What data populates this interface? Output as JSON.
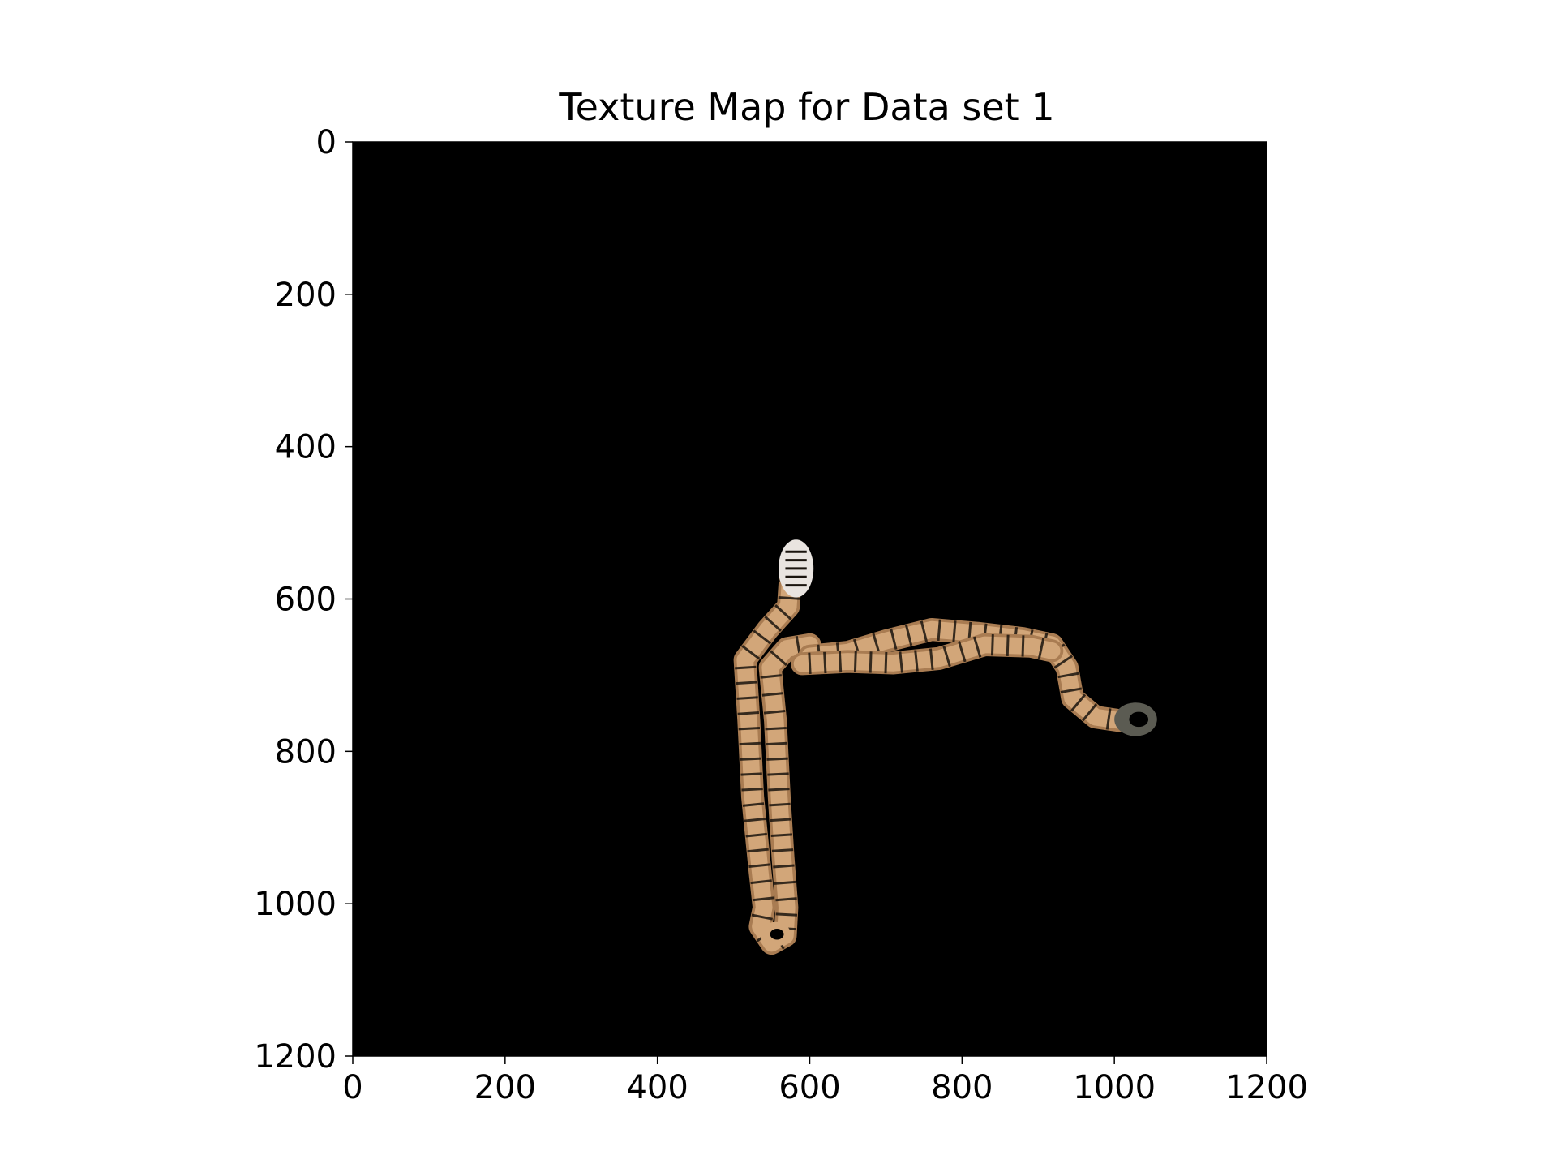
{
  "chart_data": {
    "type": "image",
    "title": "Texture Map for Data set 1",
    "xlabel": "",
    "ylabel": "",
    "xlim": [
      0,
      1200
    ],
    "ylim": [
      1200,
      0
    ],
    "x_ticks": [
      0,
      200,
      400,
      600,
      800,
      1000,
      1200
    ],
    "y_ticks": [
      0,
      200,
      400,
      600,
      800,
      1000,
      1200
    ],
    "x_tick_labels": [
      "0",
      "200",
      "400",
      "600",
      "800",
      "1000",
      "1200"
    ],
    "y_tick_labels": [
      "0",
      "200",
      "400",
      "600",
      "800",
      "1000",
      "1200"
    ],
    "grid": false,
    "background_color": "#000000",
    "texture_colors": {
      "tube": "#d2a679",
      "tube_dark": "#a97c52",
      "stripe": "#1a140e",
      "head": "#e9e4e0",
      "tail": "#5b5b52"
    },
    "paths": [
      {
        "name": "left-tube",
        "points": [
          [
            575,
            565
          ],
          [
            572,
            610
          ],
          [
            545,
            640
          ],
          [
            515,
            680
          ],
          [
            520,
            760
          ],
          [
            525,
            860
          ],
          [
            535,
            960
          ],
          [
            540,
            1005
          ],
          [
            535,
            1030
          ],
          [
            550,
            1052
          ],
          [
            568,
            1042
          ],
          [
            570,
            1005
          ],
          [
            565,
            940
          ],
          [
            560,
            860
          ],
          [
            555,
            760
          ],
          [
            548,
            690
          ],
          [
            570,
            665
          ],
          [
            600,
            660
          ]
        ]
      },
      {
        "name": "right-tube",
        "points": [
          [
            600,
            675
          ],
          [
            650,
            670
          ],
          [
            700,
            655
          ],
          [
            760,
            640
          ],
          [
            820,
            645
          ],
          [
            880,
            652
          ],
          [
            918,
            660
          ],
          [
            938,
            690
          ],
          [
            945,
            730
          ],
          [
            975,
            755
          ],
          [
            1010,
            760
          ],
          [
            1040,
            758
          ]
        ]
      },
      {
        "name": "lower-branch",
        "points": [
          [
            590,
            685
          ],
          [
            650,
            682
          ],
          [
            710,
            684
          ],
          [
            770,
            678
          ],
          [
            830,
            660
          ],
          [
            890,
            662
          ],
          [
            918,
            668
          ]
        ]
      }
    ],
    "regions": [
      {
        "name": "head",
        "center": [
          582,
          560
        ],
        "radius": [
          23,
          38
        ]
      },
      {
        "name": "tail",
        "center": [
          1028,
          758
        ],
        "radius": [
          28,
          22
        ]
      },
      {
        "name": "loop",
        "center": [
          555,
          1040
        ],
        "radius": [
          20,
          16
        ]
      }
    ]
  }
}
